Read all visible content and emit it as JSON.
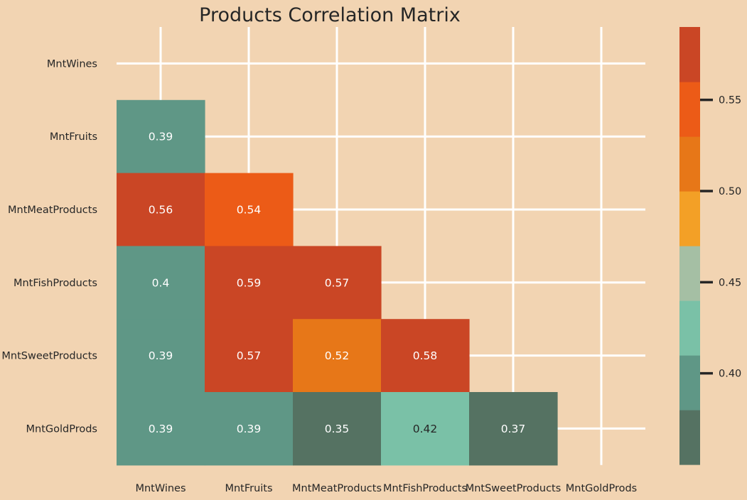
{
  "chart_data": {
    "type": "heatmap",
    "title": "Products Correlation Matrix",
    "xlabel": "",
    "ylabel": "",
    "row_labels": [
      "MntWines",
      "MntFruits",
      "MntMeatProducts",
      "MntFishProducts",
      "MntSweetProducts",
      "MntGoldProds"
    ],
    "col_labels": [
      "MntWines",
      "MntFruits",
      "MntMeatProducts",
      "MntFishProducts",
      "MntSweetProducts",
      "MntGoldProds"
    ],
    "mask": "upper-triangle-including-diagonal",
    "grid": true,
    "cells": [
      {
        "row": 1,
        "col": 0,
        "value": 0.39,
        "label": "0.39"
      },
      {
        "row": 2,
        "col": 0,
        "value": 0.56,
        "label": "0.56"
      },
      {
        "row": 2,
        "col": 1,
        "value": 0.54,
        "label": "0.54"
      },
      {
        "row": 3,
        "col": 0,
        "value": 0.4,
        "label": "0.4"
      },
      {
        "row": 3,
        "col": 1,
        "value": 0.59,
        "label": "0.59"
      },
      {
        "row": 3,
        "col": 2,
        "value": 0.57,
        "label": "0.57"
      },
      {
        "row": 4,
        "col": 0,
        "value": 0.39,
        "label": "0.39"
      },
      {
        "row": 4,
        "col": 1,
        "value": 0.57,
        "label": "0.57"
      },
      {
        "row": 4,
        "col": 2,
        "value": 0.52,
        "label": "0.52"
      },
      {
        "row": 4,
        "col": 3,
        "value": 0.58,
        "label": "0.58"
      },
      {
        "row": 5,
        "col": 0,
        "value": 0.39,
        "label": "0.39"
      },
      {
        "row": 5,
        "col": 1,
        "value": 0.39,
        "label": "0.39"
      },
      {
        "row": 5,
        "col": 2,
        "value": 0.35,
        "label": "0.35"
      },
      {
        "row": 5,
        "col": 3,
        "value": 0.42,
        "label": "0.42"
      },
      {
        "row": 5,
        "col": 4,
        "value": 0.37,
        "label": "0.37"
      }
    ],
    "colorbar": {
      "vmin": 0.35,
      "vmax": 0.59,
      "colors": [
        "#557262",
        "#5f9786",
        "#7ac1a7",
        "#a5bfa4",
        "#f3a026",
        "#e77718",
        "#ec5b17",
        "#ca4625"
      ],
      "ticks": [
        {
          "value": 0.4,
          "label": "0.40"
        },
        {
          "value": 0.45,
          "label": "0.45"
        },
        {
          "value": 0.5,
          "label": "0.50"
        },
        {
          "value": 0.55,
          "label": "0.55"
        }
      ]
    },
    "text_colors": {
      "on_dark": "#ffffff",
      "on_light": "#262626"
    },
    "grid_color": "#ffffff",
    "background": "#f2d4b2"
  }
}
